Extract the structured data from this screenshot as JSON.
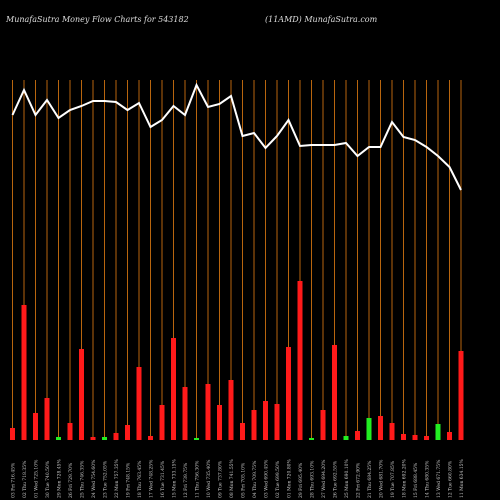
{
  "chart_data": {
    "type": "bar-line",
    "title": "MunafaSutra  Money Flow  Charts for 543182",
    "subtitle": "(11AMD) MunafaSutra.com",
    "categories": [
      "03 Fri 716.45%",
      "02 Thu 718.35%",
      "01 Wed 725.10%",
      "30 Tue 740.50%",
      "29 Mon 728.45%",
      "26 Fri 729.70%",
      "25 Thu 746.35%",
      "24 Wed 754.60%",
      "23 Tue 752.05%",
      "22 Mon 757.35%",
      "19 Fri 748.15%",
      "18 Thu 763.45%",
      "17 Wed 748.25%",
      "16 Tue 731.45%",
      "15 Mon 733.15%",
      "12 Fri 739.75%",
      "11 Thu 756.30%",
      "10 Wed 735.40%",
      "09 Tue 737.80%",
      "08 Mon 741.55%",
      "05 Fri 705.10%",
      "04 Thu 709.75%",
      "03 Wed 690.45%",
      "02 Tue 699.50%",
      "01 Mon 720.80%",
      "29 Fri 695.40%",
      "28 Thu 693.10%",
      "27 Wed 694.20%",
      "26 Tue 692.55%",
      "25 Mon 690.10%",
      "22 Fri 672.90%",
      "21 Thu 684.25%",
      "20 Wed 681.70%",
      "19 Tue 707.85%",
      "18 Mon 692.20%",
      "15 Fri 688.45%",
      "14 Thu 680.35%",
      "13 Wed 671.75%",
      "12 Tue 660.80%",
      "11 Mon 634.15%"
    ],
    "values": [
      12,
      135,
      27,
      42,
      3,
      17,
      91,
      3,
      3,
      7,
      15,
      73,
      4,
      35,
      102,
      53,
      2,
      56,
      35,
      60,
      17,
      30,
      39,
      36,
      93,
      159,
      2,
      30,
      95,
      4,
      9,
      22,
      24,
      17,
      6,
      5,
      4,
      16,
      8,
      89
    ],
    "colors": [
      "#ff1a1a",
      "#ff1a1a",
      "#ff1a1a",
      "#ff1a1a",
      "#22ee22",
      "#ff1a1a",
      "#ff1a1a",
      "#ff1a1a",
      "#22ee22",
      "#ff1a1a",
      "#ff1a1a",
      "#ff1a1a",
      "#ff1a1a",
      "#ff1a1a",
      "#ff1a1a",
      "#ff1a1a",
      "#22ee22",
      "#ff1a1a",
      "#ff1a1a",
      "#ff1a1a",
      "#ff1a1a",
      "#ff1a1a",
      "#ff1a1a",
      "#ff1a1a",
      "#ff1a1a",
      "#ff1a1a",
      "#22ee22",
      "#ff1a1a",
      "#ff1a1a",
      "#22ee22",
      "#ff1a1a",
      "#22ee22",
      "#ff1a1a",
      "#ff1a1a",
      "#ff1a1a",
      "#ff1a1a",
      "#ff1a1a",
      "#22ee22",
      "#ff1a1a",
      "#ff1a1a"
    ],
    "line_values": [
      325,
      350,
      325,
      340,
      322,
      330,
      334,
      339,
      339,
      338,
      330,
      337,
      313,
      320,
      334,
      325,
      355,
      333,
      336,
      344,
      304,
      307,
      292,
      304,
      320,
      294,
      295,
      295,
      295,
      297,
      284,
      293,
      293,
      318,
      303,
      300,
      293,
      284,
      273,
      250
    ],
    "line_color": "#ffffff",
    "grid_color": "#b8650e",
    "ylim": [
      0,
      360
    ]
  }
}
